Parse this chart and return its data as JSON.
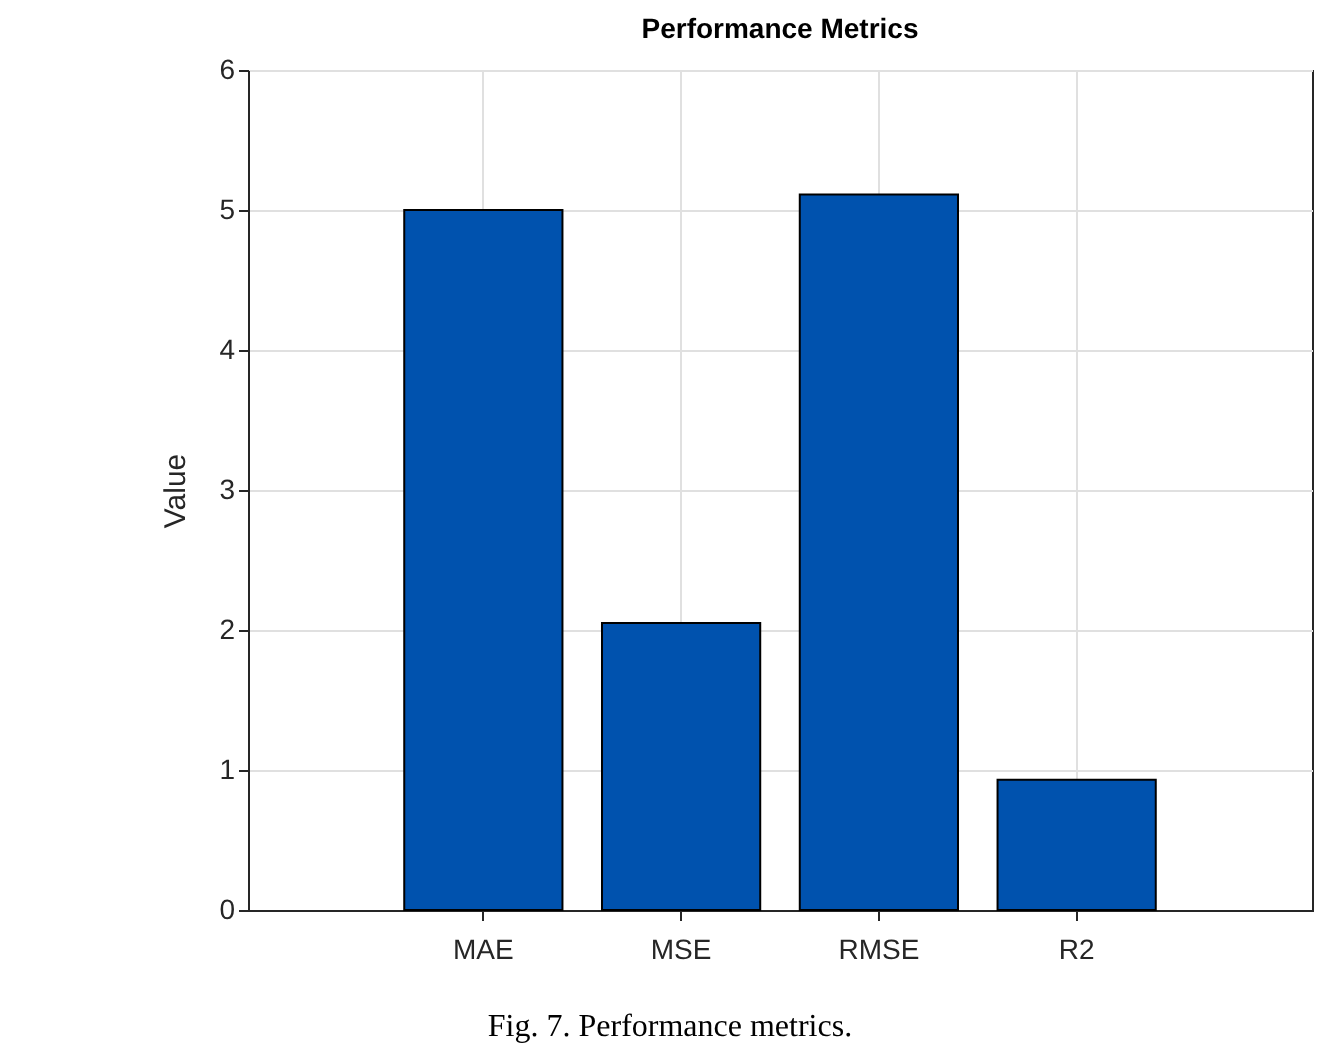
{
  "chart_data": {
    "type": "bar",
    "title": "Performance Metrics",
    "ylabel": "Value",
    "categories": [
      "MAE",
      "MSE",
      "RMSE",
      "R2"
    ],
    "values": [
      5.0,
      2.05,
      5.11,
      0.93
    ],
    "color": "#0052ae",
    "ylim": [
      0,
      6
    ],
    "yticks": [
      0,
      1,
      2,
      3,
      4,
      5,
      6
    ],
    "grid": true,
    "annotations": [
      "Fig. 7. Performance metrics."
    ]
  }
}
